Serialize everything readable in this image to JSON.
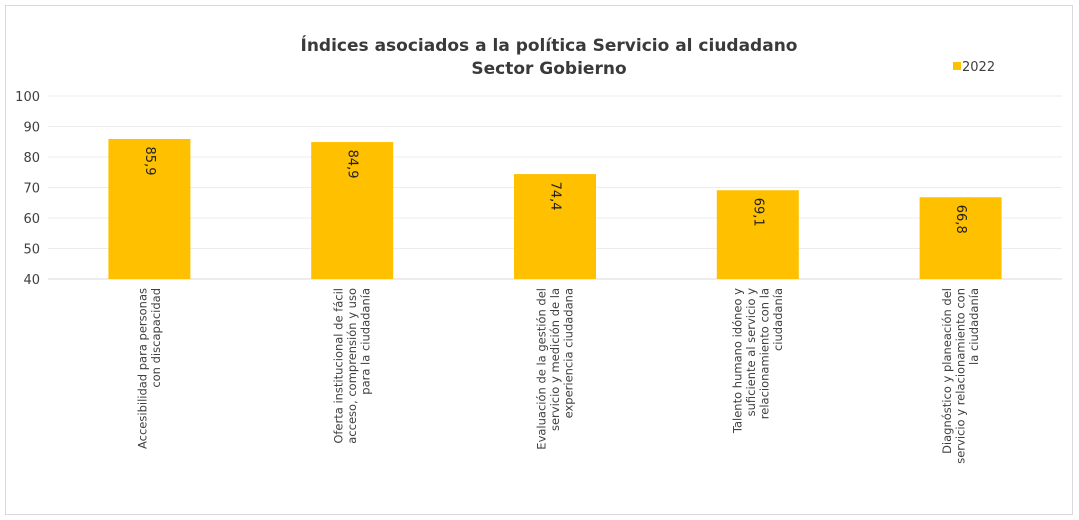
{
  "chart_data": {
    "type": "bar",
    "title": "Índices asociados a la política Servicio al ciudadano",
    "subtitle": "Sector Gobierno",
    "xlabel": "",
    "ylabel": "",
    "ylim": [
      40,
      100
    ],
    "yticks": [
      40,
      50,
      60,
      70,
      80,
      90,
      100
    ],
    "grid": true,
    "legend_position": "top-right",
    "categories": [
      [
        "Accesibilidad para personas",
        "con discapacidad"
      ],
      [
        "Oferta institucional de fácil",
        "acceso, comprensión y uso",
        "para la ciudadanía"
      ],
      [
        "Evaluación de la gestión del",
        "servicio y medición de la",
        "experiencia ciudadana"
      ],
      [
        "Talento humano idóneo y",
        "suficiente al servicio y",
        "relacionamiento con la",
        "ciudadanía"
      ],
      [
        "Diagnóstico y planeación del",
        "servicio y relacionamiento con",
        "la ciudadanía"
      ]
    ],
    "series": [
      {
        "name": "2022",
        "color": "#FFC000",
        "values": [
          85.9,
          84.9,
          74.4,
          69.1,
          66.8
        ],
        "labels": [
          "85,9",
          "84,9",
          "74,4",
          "69,1",
          "66,8"
        ]
      }
    ]
  }
}
